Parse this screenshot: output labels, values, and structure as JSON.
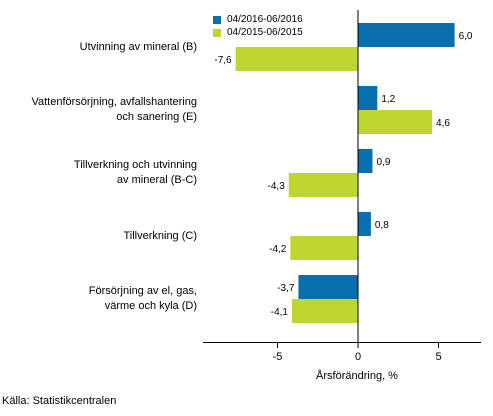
{
  "chart_data": {
    "type": "bar",
    "orientation": "horizontal",
    "categories": [
      "Utvinning av mineral (B)",
      "Vattenförsörjning, avfallshantering\noch sanering (E)",
      "Tillverkning och utvinning\nav mineral (B-C)",
      "Tillverkning (C)",
      "Försörjning av el, gas,\nvärme och kyla (D)"
    ],
    "series": [
      {
        "name": "04/2016-06/2016",
        "color": "#0a6fae",
        "values": [
          6.0,
          1.2,
          0.9,
          0.8,
          -3.7
        ],
        "labels": [
          "6,0",
          "1,2",
          "0,9",
          "0,8",
          "-3,7"
        ]
      },
      {
        "name": "04/2015-06/2015",
        "color": "#bfd630",
        "values": [
          -7.6,
          4.6,
          -4.3,
          -4.2,
          -4.1
        ],
        "labels": [
          "-7,6",
          "4,6",
          "-4,3",
          "-4,2",
          "-4,1"
        ]
      }
    ],
    "xticks": [
      "-5",
      "0",
      "5"
    ],
    "xtick_values": [
      -5,
      0,
      5
    ],
    "xlabel": "Årsförändring, %",
    "ylabel": "",
    "xlim": [
      -9.5,
      7.6
    ],
    "grid": false,
    "legend_position": "top"
  },
  "source": "Källa: Statistikcentralen"
}
